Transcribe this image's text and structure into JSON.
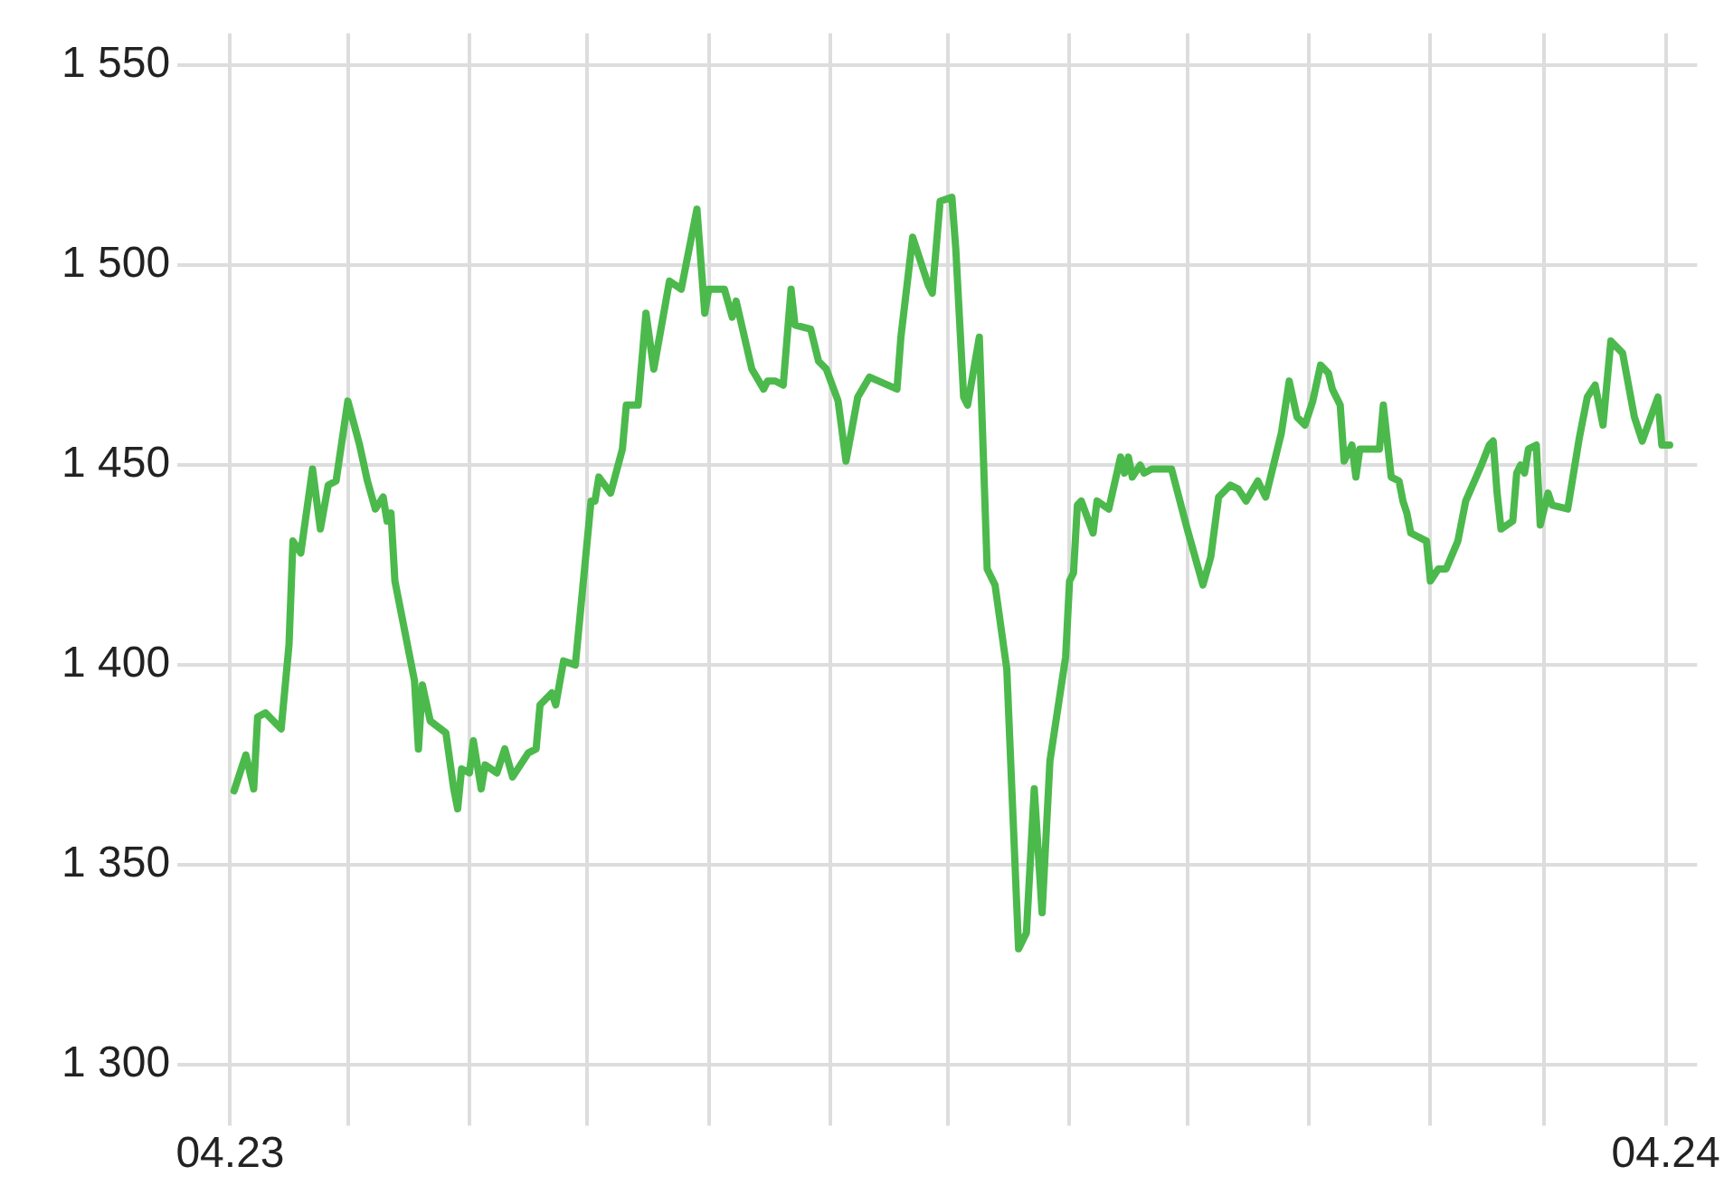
{
  "chart_data": {
    "type": "line",
    "x": [
      "2023-04-02",
      "2023-04-05",
      "2023-04-07",
      "2023-04-08",
      "2023-04-10",
      "2023-04-14",
      "2023-04-16",
      "2023-04-17",
      "2023-04-19",
      "2023-04-22",
      "2023-04-24",
      "2023-04-26",
      "2023-04-28",
      "2023-05-01",
      "2023-05-04",
      "2023-05-06",
      "2023-05-08",
      "2023-05-10",
      "2023-05-11",
      "2023-05-12",
      "2023-05-13",
      "2023-05-18",
      "2023-05-19",
      "2023-05-20",
      "2023-05-22",
      "2023-05-26",
      "2023-05-28",
      "2023-05-29",
      "2023-05-30",
      "2023-06-01",
      "2023-06-02",
      "2023-06-04",
      "2023-06-05",
      "2023-06-08",
      "2023-06-10",
      "2023-06-12",
      "2023-06-14",
      "2023-06-16",
      "2023-06-18",
      "2023-06-19",
      "2023-06-22",
      "2023-06-23",
      "2023-06-25",
      "2023-06-28",
      "2023-07-02",
      "2023-07-03",
      "2023-07-04",
      "2023-07-07",
      "2023-07-10",
      "2023-07-11",
      "2023-07-14",
      "2023-07-16",
      "2023-07-18",
      "2023-07-22",
      "2023-07-25",
      "2023-07-29",
      "2023-07-31",
      "2023-08-01",
      "2023-08-05",
      "2023-08-07",
      "2023-08-08",
      "2023-08-12",
      "2023-08-15",
      "2023-08-16",
      "2023-08-18",
      "2023-08-20",
      "2023-08-22",
      "2023-08-23",
      "2023-08-27",
      "2023-08-29",
      "2023-08-31",
      "2023-09-03",
      "2023-09-05",
      "2023-09-08",
      "2023-09-11",
      "2023-09-18",
      "2023-09-19",
      "2023-09-22",
      "2023-09-26",
      "2023-09-27",
      "2023-09-29",
      "2023-10-02",
      "2023-10-03",
      "2023-10-05",
      "2023-10-06",
      "2023-10-09",
      "2023-10-11",
      "2023-10-13",
      "2023-10-16",
      "2023-10-19",
      "2023-10-21",
      "2023-10-23",
      "2023-10-25",
      "2023-10-27",
      "2023-10-31",
      "2023-11-01",
      "2023-11-02",
      "2023-11-03",
      "2023-11-04",
      "2023-11-07",
      "2023-11-08",
      "2023-11-11",
      "2023-11-14",
      "2023-11-15",
      "2023-11-16",
      "2023-11-17",
      "2023-11-19",
      "2023-11-20",
      "2023-11-22",
      "2023-11-27",
      "2023-12-01",
      "2023-12-05",
      "2023-12-07",
      "2023-12-09",
      "2023-12-12",
      "2023-12-14",
      "2023-12-16",
      "2023-12-19",
      "2023-12-21",
      "2023-12-25",
      "2023-12-27",
      "2023-12-29",
      "2023-12-31",
      "2024-01-02",
      "2024-01-04",
      "2024-01-06",
      "2024-01-07",
      "2024-01-09",
      "2024-01-10",
      "2024-01-12",
      "2024-01-13",
      "2024-01-14",
      "2024-01-19",
      "2024-01-20",
      "2024-01-22",
      "2024-01-24",
      "2024-01-25",
      "2024-01-26",
      "2024-01-27",
      "2024-01-31",
      "2024-02-01",
      "2024-02-03",
      "2024-02-05",
      "2024-02-08",
      "2024-02-09",
      "2024-02-10",
      "2024-02-14",
      "2024-02-16",
      "2024-02-17",
      "2024-02-18",
      "2024-02-19",
      "2024-02-22",
      "2024-02-23",
      "2024-02-24",
      "2024-02-25",
      "2024-02-26",
      "2024-02-28",
      "2024-02-29",
      "2024-03-02",
      "2024-03-03",
      "2024-03-07",
      "2024-03-10",
      "2024-03-12",
      "2024-03-14",
      "2024-03-16",
      "2024-03-18",
      "2024-03-21",
      "2024-03-24",
      "2024-03-26",
      "2024-03-30",
      "2024-03-31",
      "2024-04-02"
    ],
    "series": [
      {
        "color": "#4cb94c",
        "values": [
          1368.5,
          1377.5,
          1369,
          1387,
          1388,
          1384,
          1405,
          1431,
          1428,
          1449,
          1434,
          1445,
          1446,
          1466,
          1455,
          1446,
          1439,
          1442,
          1436,
          1438,
          1421,
          1396,
          1379,
          1395,
          1386,
          1383,
          1369,
          1364,
          1374,
          1373,
          1381,
          1369,
          1375,
          1373,
          1379,
          1372,
          1375,
          1378,
          1379,
          1390,
          1393,
          1390,
          1401,
          1400,
          1441,
          1441,
          1447,
          1443,
          1454,
          1465,
          1465,
          1488,
          1474,
          1496,
          1494,
          1514,
          1488,
          1494,
          1494,
          1487,
          1491,
          1474,
          1469,
          1471,
          1471,
          1470,
          1494,
          1485,
          1484,
          1476,
          1474,
          1466,
          1451,
          1467,
          1472,
          1469,
          1482,
          1507,
          1495,
          1493,
          1516,
          1517,
          1504,
          1467,
          1465,
          1482,
          1424,
          1420,
          1399,
          1329,
          1333,
          1369,
          1338,
          1376,
          1402,
          1421,
          1423,
          1440,
          1441,
          1433,
          1441,
          1439,
          1452,
          1448,
          1452,
          1447,
          1450,
          1448,
          1449,
          1449,
          1434,
          1420,
          1427,
          1442,
          1445,
          1444,
          1441,
          1446,
          1442,
          1458,
          1471,
          1462,
          1460,
          1466,
          1475,
          1473,
          1469,
          1465,
          1451,
          1455,
          1447,
          1454,
          1454,
          1465,
          1447,
          1446,
          1441,
          1438,
          1433,
          1431,
          1421,
          1424,
          1424,
          1431,
          1436,
          1441,
          1450,
          1455,
          1456,
          1443,
          1434,
          1436,
          1448,
          1450,
          1448,
          1454,
          1455,
          1435,
          1443,
          1440,
          1439,
          1457,
          1467,
          1470,
          1460,
          1481,
          1478,
          1462,
          1456,
          1467,
          1455,
          1455
        ]
      }
    ],
    "xlim": [
      "2023-03-25",
      "2024-04-09"
    ],
    "xticks": [
      {
        "value": "2023-04-01",
        "label": "04.23"
      },
      {
        "value": "2023-05-01",
        "label": null
      },
      {
        "value": "2023-06-01",
        "label": null
      },
      {
        "value": "2023-07-01",
        "label": null
      },
      {
        "value": "2023-08-01",
        "label": null
      },
      {
        "value": "2023-09-01",
        "label": null
      },
      {
        "value": "2023-10-01",
        "label": null
      },
      {
        "value": "2023-11-01",
        "label": null
      },
      {
        "value": "2023-12-01",
        "label": null
      },
      {
        "value": "2024-01-01",
        "label": null
      },
      {
        "value": "2024-02-01",
        "label": null
      },
      {
        "value": "2024-03-01",
        "label": null
      },
      {
        "value": "2024-04-01",
        "label": "04.24"
      }
    ],
    "ylim": [
      1292,
      1558
    ],
    "yticks": [
      {
        "value": 1300,
        "label": "1 300"
      },
      {
        "value": 1350,
        "label": "1 350"
      },
      {
        "value": 1400,
        "label": "1 400"
      },
      {
        "value": 1450,
        "label": "1 450"
      },
      {
        "value": 1500,
        "label": "1 500"
      },
      {
        "value": 1550,
        "label": "1 550"
      }
    ],
    "grid": true,
    "legend": false,
    "marker": "none",
    "line_style": "solid"
  }
}
